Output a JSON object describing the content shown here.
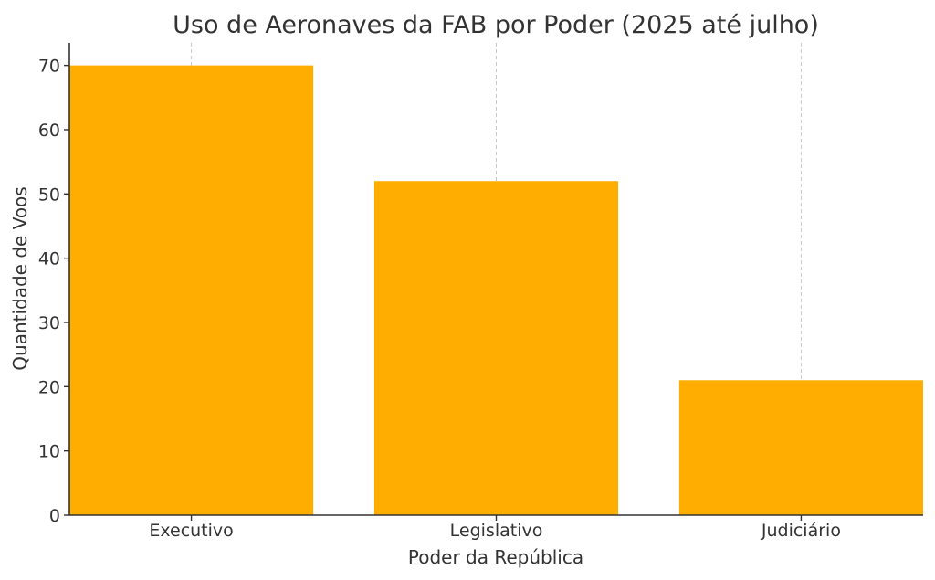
{
  "colors": {
    "bar": "#FFAE00",
    "axis": "#333333",
    "grid": "#c8c8c8"
  },
  "chart_data": {
    "type": "bar",
    "title": "Uso de Aeronaves da FAB por Poder (2025 até julho)",
    "xlabel": "Poder da República",
    "ylabel": "Quantidade de Voos",
    "categories": [
      "Executivo",
      "Legislativo",
      "Judiciário"
    ],
    "values": [
      70,
      52,
      21
    ],
    "ylim": [
      0,
      73.5
    ],
    "yticks": [
      0,
      10,
      20,
      30,
      40,
      50,
      60,
      70
    ],
    "grid": "x-dashed",
    "legend": "none"
  }
}
